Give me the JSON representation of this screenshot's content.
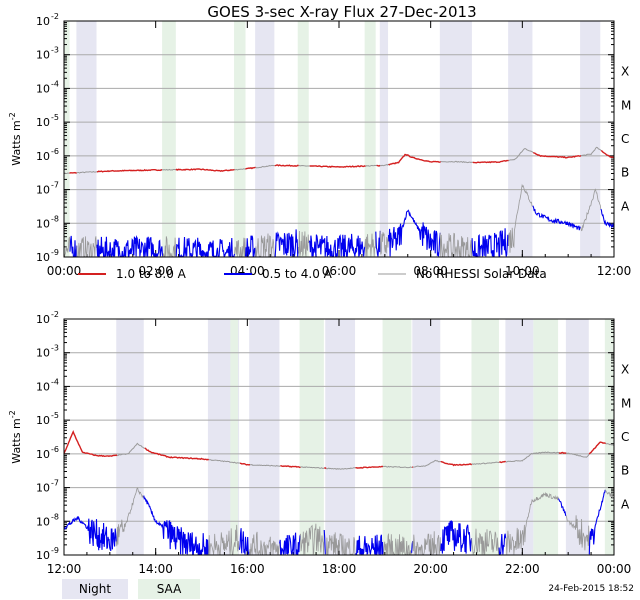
{
  "chart_data": {
    "type": "line",
    "title": "GOES 3-sec X-ray Flux   27-Dec-2013",
    "ylabel": "Watts m",
    "ylabel_sup": "-2",
    "y_scale": "log",
    "ylim_exp": [
      -9,
      -2
    ],
    "y_tick_labels": [
      "10",
      "10",
      "10",
      "10",
      "10",
      "10",
      "10",
      "10"
    ],
    "y_tick_exps": [
      "-9",
      "-8",
      "-7",
      "-6",
      "-5",
      "-4",
      "-3",
      "-2"
    ],
    "class_labels": [
      {
        "label": "A",
        "exp": -8
      },
      {
        "label": "B",
        "exp": -7
      },
      {
        "label": "C",
        "exp": -6
      },
      {
        "label": "M",
        "exp": -5
      },
      {
        "label": "X",
        "exp": -4
      }
    ],
    "legend": [
      {
        "name": "1.0 to 8.0 A",
        "color": "#d42020"
      },
      {
        "name": "0.5 to 4.0 A",
        "color": "#0000ee"
      },
      {
        "name": "No RHESSI Solar Data",
        "color": "#999999"
      }
    ],
    "panels": [
      {
        "name": "morning",
        "x_range_hours": [
          0,
          12
        ],
        "x_tick_labels": [
          "00:00",
          "02:00",
          "04:00",
          "06:00",
          "08:00",
          "10:00",
          "12:00"
        ],
        "night_hours": [
          [
            0.27,
            0.71
          ],
          [
            4.17,
            4.59
          ],
          [
            6.89,
            7.07
          ],
          [
            8.2,
            8.9
          ],
          [
            9.69,
            10.22
          ],
          [
            11.26,
            11.7
          ]
        ],
        "saa_hours": [
          [
            0.0,
            0.12
          ],
          [
            2.14,
            2.44
          ],
          [
            3.71,
            3.96
          ],
          [
            5.1,
            5.34
          ],
          [
            6.56,
            6.8
          ]
        ],
        "long_channel": {
          "hours": [
            0,
            1,
            2,
            3,
            3.4,
            4,
            4.6,
            5.3,
            6,
            6.6,
            7,
            7.3,
            7.45,
            7.6,
            8,
            8.5,
            9,
            9.5,
            9.85,
            10.05,
            10.4,
            11,
            11.5,
            11.62,
            11.9,
            12
          ],
          "log_values": [
            -6.52,
            -6.45,
            -6.42,
            -6.4,
            -6.45,
            -6.38,
            -6.28,
            -6.3,
            -6.33,
            -6.3,
            -6.28,
            -6.2,
            -5.95,
            -6.05,
            -6.18,
            -6.17,
            -6.2,
            -6.18,
            -6.1,
            -5.78,
            -6.0,
            -6.05,
            -5.95,
            -5.75,
            -6.02,
            -6.05
          ]
        },
        "short_channel": {
          "hours": [
            0,
            1,
            2,
            3,
            3.5,
            4,
            4.5,
            5,
            5.5,
            6,
            6.5,
            7,
            7.3,
            7.5,
            7.7,
            8,
            8.5,
            9,
            9.5,
            9.8,
            10,
            10.3,
            10.6,
            11,
            11.3,
            11.6,
            11.8,
            12
          ],
          "log_values": [
            -8.8,
            -8.85,
            -8.8,
            -8.85,
            -8.9,
            -8.8,
            -8.7,
            -8.6,
            -8.75,
            -8.8,
            -8.7,
            -8.65,
            -8.5,
            -7.6,
            -8.1,
            -8.6,
            -8.75,
            -8.8,
            -8.7,
            -8.4,
            -6.85,
            -7.7,
            -7.9,
            -8.0,
            -8.2,
            -7.0,
            -8.0,
            -8.1
          ]
        }
      },
      {
        "name": "afternoon",
        "x_range_hours": [
          12,
          24
        ],
        "x_tick_labels": [
          "12:00",
          "14:00",
          "16:00",
          "18:00",
          "20:00",
          "22:00",
          "00:00"
        ],
        "night_hours": [
          [
            13.14,
            13.74
          ],
          [
            15.14,
            15.82
          ],
          [
            16.04,
            16.7
          ],
          [
            17.7,
            18.35
          ],
          [
            19.6,
            20.21
          ],
          [
            21.63,
            22.24
          ],
          [
            22.95,
            23.45
          ]
        ],
        "saa_hours": [
          [
            15.63,
            15.8
          ],
          [
            17.14,
            17.67
          ],
          [
            18.95,
            19.58
          ],
          [
            20.89,
            21.49
          ],
          [
            22.24,
            22.78
          ],
          [
            23.8,
            24.0
          ]
        ],
        "long_channel": {
          "hours": [
            12,
            12.2,
            12.4,
            12.7,
            13,
            13.4,
            13.6,
            13.9,
            14.3,
            15,
            15.7,
            16,
            16.5,
            17,
            17.6,
            18,
            18.6,
            19,
            19.5,
            19.9,
            20.1,
            20.5,
            21,
            21.5,
            22,
            22.2,
            22.5,
            23,
            23.4,
            23.7,
            24
          ],
          "log_values": [
            -6.0,
            -5.35,
            -5.95,
            -6.05,
            -6.07,
            -6.0,
            -5.7,
            -5.95,
            -6.1,
            -6.15,
            -6.25,
            -6.32,
            -6.35,
            -6.38,
            -6.42,
            -6.45,
            -6.4,
            -6.38,
            -6.4,
            -6.35,
            -6.2,
            -6.33,
            -6.3,
            -6.25,
            -6.2,
            -6.0,
            -5.95,
            -5.98,
            -6.1,
            -5.65,
            -5.75
          ]
        },
        "short_channel": {
          "hours": [
            12,
            12.3,
            12.6,
            13,
            13.3,
            13.6,
            13.8,
            14,
            14.5,
            15,
            15.6,
            15.8,
            16,
            16.5,
            17,
            17.5,
            18,
            18.5,
            19,
            19.5,
            20,
            20.4,
            21,
            21.5,
            22,
            22.2,
            22.5,
            22.8,
            23,
            23.5,
            23.8,
            24
          ],
          "log_values": [
            -8.2,
            -7.9,
            -8.3,
            -8.6,
            -8.3,
            -7.05,
            -7.4,
            -8.0,
            -8.6,
            -8.8,
            -8.7,
            -8.5,
            -8.7,
            -8.85,
            -8.8,
            -8.5,
            -8.8,
            -8.85,
            -8.8,
            -8.85,
            -8.8,
            -8.4,
            -8.6,
            -8.7,
            -8.6,
            -7.4,
            -7.2,
            -7.35,
            -8.0,
            -8.6,
            -7.1,
            -7.3
          ]
        }
      }
    ],
    "footer": {
      "night_label": "Night",
      "saa_label": "SAA",
      "night_color": "#e6e6f2",
      "saa_color": "#e6f2e6"
    },
    "timestamp": "24-Feb-2015 18:52"
  }
}
